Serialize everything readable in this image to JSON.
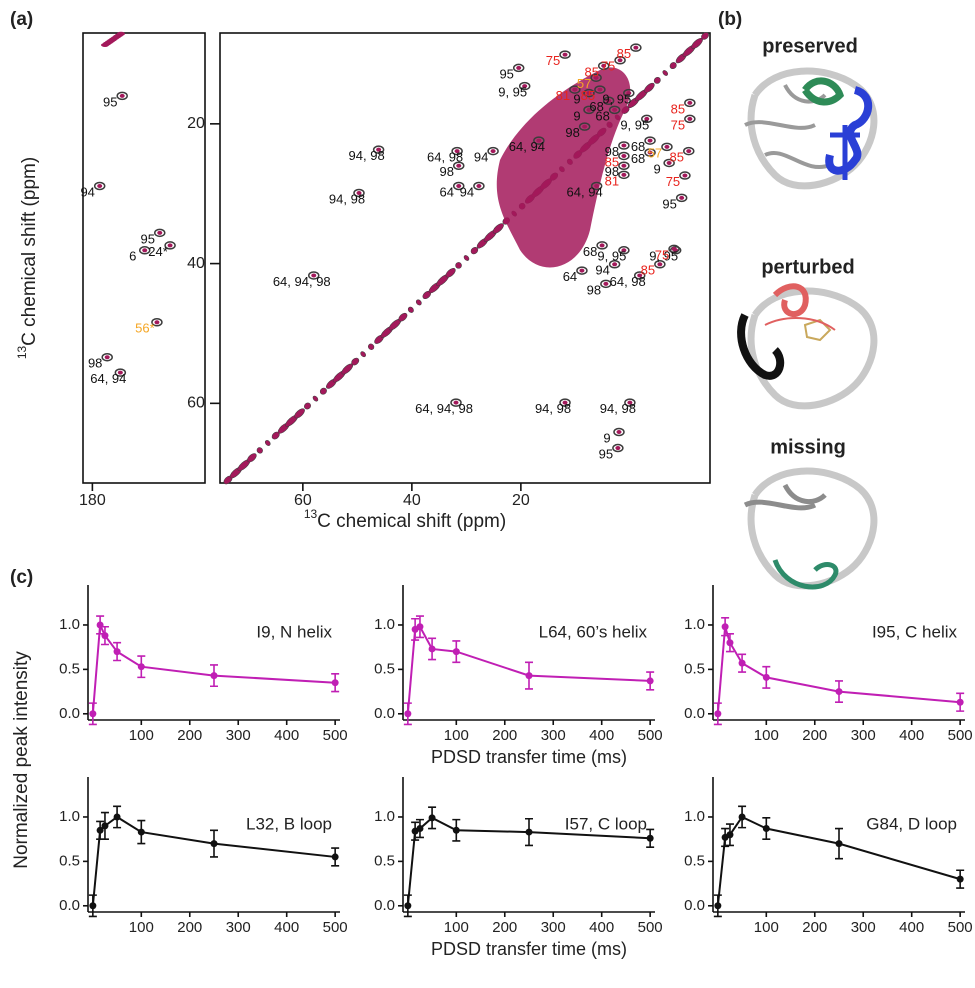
{
  "panel_labels": [
    "(a)",
    "(b)",
    "(c)"
  ],
  "spectrum": {
    "x_label_sup": "13",
    "x_label": "C chemical shift (ppm)",
    "y_label_sup": "13",
    "y_label": "C chemical shift (ppm)",
    "strip_xlim": [
      181,
      168
    ],
    "strip_xticks": [
      180
    ],
    "main_xlim": [
      75.2,
      -14.7
    ],
    "main_xticks": [
      60,
      40,
      20
    ],
    "ylim": [
      7,
      71.4
    ],
    "yticks": [
      20,
      40,
      60
    ],
    "contour_color": "#3c3c3c",
    "overlay_color": "#a3195b",
    "strip_labels": [
      {
        "text": "95",
        "x": 178.1,
        "y": 17.0,
        "color": "#111111"
      },
      {
        "text": "94",
        "x": 180.5,
        "y": 29.9,
        "color": "#111111"
      },
      {
        "text": "95",
        "x": 174.1,
        "y": 36.6,
        "color": "#111111"
      },
      {
        "text": "6",
        "x": 175.7,
        "y": 39.1,
        "color": "#111111"
      },
      {
        "text": "24*",
        "x": 173.0,
        "y": 38.4,
        "color": "#111111"
      },
      {
        "text": "56*",
        "x": 174.4,
        "y": 49.4,
        "color": "#f5a623"
      },
      {
        "text": "98",
        "x": 179.7,
        "y": 54.4,
        "color": "#111111"
      },
      {
        "text": "64, 94",
        "x": 178.3,
        "y": 56.6,
        "color": "#111111"
      }
    ],
    "main_labels": [
      {
        "text": "95",
        "x": 22.6,
        "y": 13.0,
        "color": "#111111"
      },
      {
        "text": "9, 95",
        "x": 21.5,
        "y": 15.6,
        "color": "#111111"
      },
      {
        "text": "94, 98",
        "x": 48.3,
        "y": 24.7,
        "color": "#111111"
      },
      {
        "text": "94, 98",
        "x": 51.9,
        "y": 30.9,
        "color": "#111111"
      },
      {
        "text": "64, 98",
        "x": 33.9,
        "y": 24.9,
        "color": "#111111"
      },
      {
        "text": "94",
        "x": 27.3,
        "y": 24.9,
        "color": "#111111"
      },
      {
        "text": "98",
        "x": 33.6,
        "y": 27.0,
        "color": "#111111"
      },
      {
        "text": "64",
        "x": 33.6,
        "y": 29.9,
        "color": "#111111"
      },
      {
        "text": "94",
        "x": 29.9,
        "y": 29.9,
        "color": "#111111"
      },
      {
        "text": "64, 94",
        "x": 18.9,
        "y": 23.4,
        "color": "#111111"
      },
      {
        "text": "98",
        "x": 10.5,
        "y": 21.4,
        "color": "#111111"
      },
      {
        "text": "9",
        "x": 9.7,
        "y": 16.6,
        "color": "#111111"
      },
      {
        "text": "68",
        "x": 6.1,
        "y": 17.7,
        "color": "#111111"
      },
      {
        "text": "9, 95",
        "x": 2.4,
        "y": 16.6,
        "color": "#111111"
      },
      {
        "text": "9",
        "x": 9.7,
        "y": 19.0,
        "color": "#111111"
      },
      {
        "text": "68",
        "x": 5.0,
        "y": 19.0,
        "color": "#111111"
      },
      {
        "text": "9, 95",
        "x": -0.9,
        "y": 20.3,
        "color": "#111111"
      },
      {
        "text": "98",
        "x": 3.3,
        "y": 24.1,
        "color": "#111111"
      },
      {
        "text": "68",
        "x": -1.5,
        "y": 23.4,
        "color": "#111111"
      },
      {
        "text": "68",
        "x": -1.5,
        "y": 25.1,
        "color": "#111111"
      },
      {
        "text": "98",
        "x": 3.3,
        "y": 27.0,
        "color": "#111111"
      },
      {
        "text": "64, 94",
        "x": 8.3,
        "y": 29.9,
        "color": "#111111"
      },
      {
        "text": "9",
        "x": -5.0,
        "y": 26.6,
        "color": "#111111"
      },
      {
        "text": "95",
        "x": -7.3,
        "y": 31.6,
        "color": "#111111"
      },
      {
        "text": "68",
        "x": 7.3,
        "y": 38.4,
        "color": "#111111"
      },
      {
        "text": "9, 95",
        "x": 3.3,
        "y": 39.1,
        "color": "#111111"
      },
      {
        "text": "9, 95",
        "x": -6.2,
        "y": 39.1,
        "color": "#111111"
      },
      {
        "text": "94",
        "x": 5.0,
        "y": 41.1,
        "color": "#111111"
      },
      {
        "text": "98",
        "x": 6.6,
        "y": 43.9,
        "color": "#111111"
      },
      {
        "text": "64",
        "x": 11.0,
        "y": 42.0,
        "color": "#111111"
      },
      {
        "text": "64, 98",
        "x": 0.4,
        "y": 42.7,
        "color": "#111111"
      },
      {
        "text": "64, 94, 98",
        "x": 60.2,
        "y": 42.7,
        "color": "#111111"
      },
      {
        "text": "64, 94, 98",
        "x": 34.1,
        "y": 60.9,
        "color": "#111111"
      },
      {
        "text": "94, 98",
        "x": 14.1,
        "y": 60.9,
        "color": "#111111"
      },
      {
        "text": "94, 98",
        "x": 2.2,
        "y": 60.9,
        "color": "#111111"
      },
      {
        "text": "9",
        "x": 4.2,
        "y": 65.1,
        "color": "#111111"
      },
      {
        "text": "95",
        "x": 4.4,
        "y": 67.4,
        "color": "#111111"
      },
      {
        "text": "75",
        "x": 14.1,
        "y": 11.1,
        "color": "#e8231d"
      },
      {
        "text": "85",
        "x": 7.0,
        "y": 12.7,
        "color": "#e8231d"
      },
      {
        "text": "75",
        "x": 4.0,
        "y": 11.9,
        "color": "#e8231d"
      },
      {
        "text": "85",
        "x": 1.1,
        "y": 10.1,
        "color": "#e8231d"
      },
      {
        "text": "81",
        "x": 12.3,
        "y": 16.1,
        "color": "#e8231d"
      },
      {
        "text": "85",
        "x": 7.7,
        "y": 16.1,
        "color": "#e8231d"
      },
      {
        "text": "85",
        "x": -8.8,
        "y": 18.0,
        "color": "#e8231d"
      },
      {
        "text": "75",
        "x": -8.8,
        "y": 20.3,
        "color": "#e8231d"
      },
      {
        "text": "85",
        "x": 3.3,
        "y": 25.6,
        "color": "#e8231d"
      },
      {
        "text": "81",
        "x": 3.3,
        "y": 28.3,
        "color": "#e8231d"
      },
      {
        "text": "85",
        "x": -8.6,
        "y": 24.9,
        "color": "#e8231d"
      },
      {
        "text": "75",
        "x": -7.9,
        "y": 28.4,
        "color": "#e8231d"
      },
      {
        "text": "75",
        "x": -5.9,
        "y": 38.9,
        "color": "#e8231d"
      },
      {
        "text": "85",
        "x": -3.3,
        "y": 41.1,
        "color": "#e8231d"
      },
      {
        "text": "57",
        "x": 8.4,
        "y": 14.4,
        "color": "#f5a623"
      },
      {
        "text": "57",
        "x": -4.6,
        "y": 24.3,
        "color": "#f5a623"
      }
    ]
  },
  "structures": [
    {
      "title": "preserved"
    },
    {
      "title": "perturbed"
    },
    {
      "title": "missing"
    }
  ],
  "panel_c_y_label": "Normalized peak intensity",
  "chart_data": [
    {
      "type": "line",
      "title": "I9, N helix",
      "x": [
        0,
        15,
        25,
        50,
        100,
        250,
        500
      ],
      "values": [
        0,
        1.0,
        0.88,
        0.7,
        0.53,
        0.43,
        0.35
      ],
      "errors": [
        0.12,
        0.1,
        0.1,
        0.1,
        0.12,
        0.12,
        0.1
      ],
      "color": "#c01fb4",
      "xlim": [
        -10,
        510
      ],
      "xticks": [
        100,
        200,
        300,
        400,
        500
      ],
      "ylim": [
        -0.07,
        1.45
      ],
      "yticks": [
        {
          "value": 0,
          "label": "0.0"
        },
        0.5,
        {
          "value": 1,
          "label": "1.0"
        }
      ]
    },
    {
      "type": "line",
      "title": "L64, 60’s helix",
      "x_label": "PDSD transfer time (ms)",
      "x": [
        0,
        15,
        25,
        50,
        100,
        250,
        500
      ],
      "values": [
        0,
        0.95,
        0.98,
        0.73,
        0.7,
        0.43,
        0.37
      ],
      "errors": [
        0.12,
        0.12,
        0.12,
        0.12,
        0.12,
        0.15,
        0.1
      ],
      "color": "#c01fb4",
      "xlim": [
        -10,
        510
      ],
      "xticks": [
        100,
        200,
        300,
        400,
        500
      ],
      "ylim": [
        -0.07,
        1.45
      ],
      "yticks": [
        {
          "value": 0,
          "label": "0.0"
        },
        0.5,
        {
          "value": 1,
          "label": "1.0"
        }
      ]
    },
    {
      "type": "line",
      "title": "I95, C helix",
      "x": [
        0,
        15,
        25,
        50,
        100,
        250,
        500
      ],
      "values": [
        0,
        0.98,
        0.8,
        0.57,
        0.41,
        0.25,
        0.13
      ],
      "errors": [
        0.12,
        0.1,
        0.1,
        0.1,
        0.12,
        0.12,
        0.1
      ],
      "color": "#c01fb4",
      "xlim": [
        -10,
        510
      ],
      "xticks": [
        100,
        200,
        300,
        400,
        500
      ],
      "ylim": [
        -0.07,
        1.45
      ],
      "yticks": [
        {
          "value": 0,
          "label": "0.0"
        },
        0.5,
        {
          "value": 1,
          "label": "1.0"
        }
      ]
    },
    {
      "type": "line",
      "title": "L32, B loop",
      "x": [
        0,
        15,
        25,
        50,
        100,
        250,
        500
      ],
      "values": [
        0,
        0.85,
        0.9,
        1.0,
        0.83,
        0.7,
        0.55
      ],
      "errors": [
        0.12,
        0.1,
        0.15,
        0.12,
        0.13,
        0.15,
        0.1
      ],
      "color": "#111111",
      "xlim": [
        -10,
        510
      ],
      "xticks": [
        100,
        200,
        300,
        400,
        500
      ],
      "ylim": [
        -0.07,
        1.45
      ],
      "yticks": [
        {
          "value": 0,
          "label": "0.0"
        },
        0.5,
        {
          "value": 1,
          "label": "1.0"
        }
      ]
    },
    {
      "type": "line",
      "title": "I57, C loop",
      "x_label": "PDSD transfer time (ms)",
      "x": [
        0,
        15,
        25,
        50,
        100,
        250,
        500
      ],
      "values": [
        0,
        0.84,
        0.87,
        0.99,
        0.85,
        0.83,
        0.76
      ],
      "errors": [
        0.12,
        0.1,
        0.1,
        0.12,
        0.12,
        0.15,
        0.1
      ],
      "color": "#111111",
      "xlim": [
        -10,
        510
      ],
      "xticks": [
        100,
        200,
        300,
        400,
        500
      ],
      "ylim": [
        -0.07,
        1.45
      ],
      "yticks": [
        {
          "value": 0,
          "label": "0.0"
        },
        0.5,
        {
          "value": 1,
          "label": "1.0"
        }
      ]
    },
    {
      "type": "line",
      "title": "G84, D loop",
      "x": [
        0,
        15,
        25,
        50,
        100,
        250,
        500
      ],
      "values": [
        0,
        0.77,
        0.8,
        1.0,
        0.87,
        0.7,
        0.3
      ],
      "errors": [
        0.12,
        0.1,
        0.12,
        0.12,
        0.12,
        0.17,
        0.1
      ],
      "color": "#111111",
      "xlim": [
        -10,
        510
      ],
      "xticks": [
        100,
        200,
        300,
        400,
        500
      ],
      "ylim": [
        -0.07,
        1.45
      ],
      "yticks": [
        {
          "value": 0,
          "label": "0.0"
        },
        0.5,
        {
          "value": 1,
          "label": "1.0"
        }
      ]
    }
  ]
}
